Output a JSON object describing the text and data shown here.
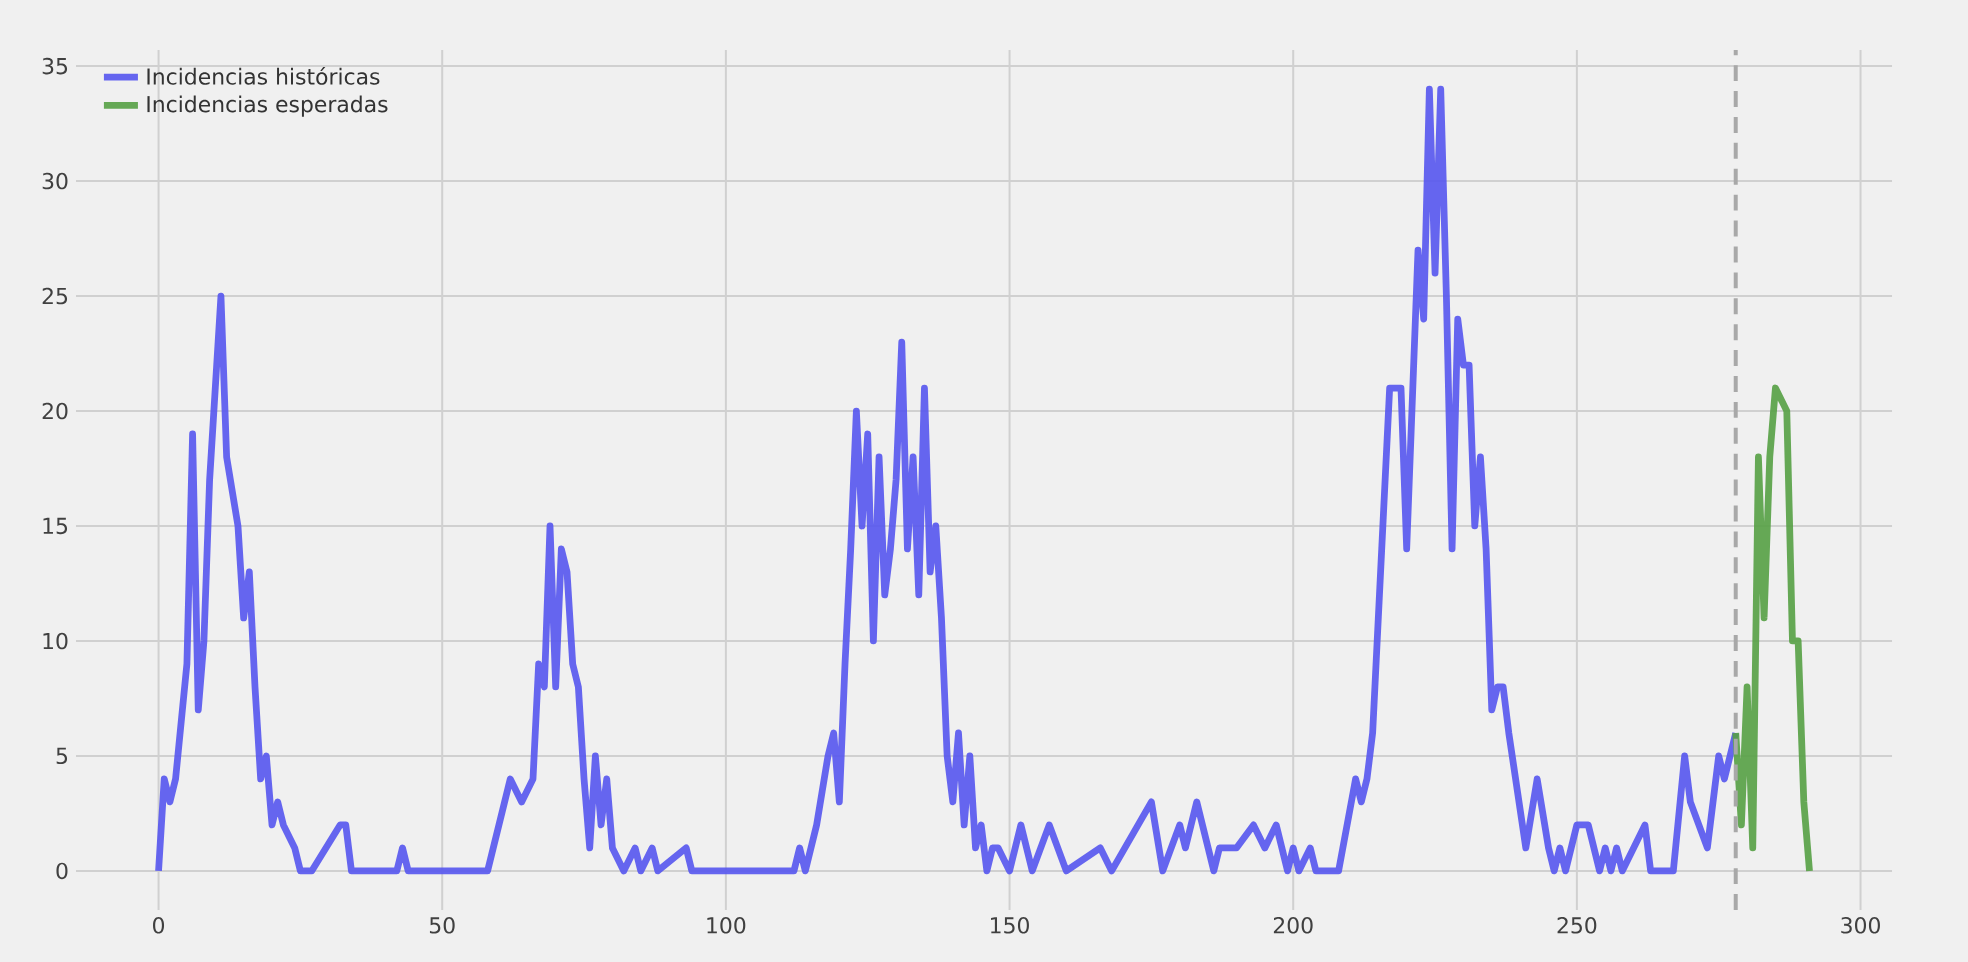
{
  "chart_data": {
    "type": "line",
    "series": [
      {
        "name": "Incidencias históricas",
        "color": "#5555ee",
        "x": [
          0,
          1,
          2,
          3,
          5,
          6,
          7,
          8,
          9,
          11,
          12,
          14,
          15,
          16,
          17,
          18,
          19,
          20,
          21,
          22,
          24,
          25,
          27,
          32,
          33,
          34,
          42,
          43,
          44,
          58,
          59,
          61,
          62,
          64,
          66,
          67,
          68,
          69,
          70,
          71,
          72,
          73,
          74,
          75,
          76,
          77,
          78,
          79,
          80,
          82,
          84,
          85,
          87,
          88,
          93,
          94,
          112,
          113,
          114,
          116,
          118,
          119,
          120,
          121,
          122,
          123,
          124,
          125,
          126,
          127,
          128,
          129,
          130,
          131,
          132,
          133,
          134,
          135,
          136,
          137,
          138,
          139,
          140,
          141,
          142,
          143,
          144,
          145,
          146,
          147,
          148,
          150,
          152,
          154,
          157,
          160,
          166,
          168,
          175,
          177,
          180,
          181,
          183,
          185,
          186,
          187,
          190,
          193,
          195,
          197,
          199,
          200,
          201,
          203,
          204,
          208,
          211,
          212,
          213,
          214,
          217,
          219,
          220,
          222,
          223,
          224,
          225,
          226,
          227,
          228,
          229,
          230,
          231,
          232,
          233,
          234,
          235,
          236,
          237,
          238,
          241,
          243,
          245,
          246,
          247,
          248,
          250,
          252,
          254,
          255,
          256,
          257,
          258,
          262,
          263,
          267,
          269,
          270,
          273,
          275,
          276,
          278
        ],
        "values": [
          0,
          4,
          3,
          4,
          9,
          19,
          7,
          10,
          17,
          25,
          18,
          15,
          11,
          13,
          8,
          4,
          5,
          2,
          3,
          2,
          1,
          0,
          0,
          2,
          2,
          0,
          0,
          1,
          0,
          0,
          1,
          3,
          4,
          3,
          4,
          9,
          8,
          15,
          8,
          14,
          13,
          9,
          8,
          4,
          1,
          5,
          2,
          4,
          1,
          0,
          1,
          0,
          1,
          0,
          1,
          0,
          0,
          1,
          0,
          2,
          5,
          6,
          3,
          9,
          14,
          20,
          15,
          19,
          10,
          18,
          12,
          14,
          17,
          23,
          14,
          18,
          12,
          21,
          13,
          15,
          11,
          5,
          3,
          6,
          2,
          5,
          1,
          2,
          0,
          1,
          1,
          0,
          2,
          0,
          2,
          0,
          1,
          0,
          3,
          0,
          2,
          1,
          3,
          1,
          0,
          1,
          1,
          2,
          1,
          2,
          0,
          1,
          0,
          1,
          0,
          0,
          4,
          3,
          4,
          6,
          21,
          21,
          14,
          27,
          24,
          34,
          26,
          34,
          25,
          14,
          24,
          22,
          22,
          15,
          18,
          14,
          7,
          8,
          8,
          6,
          1,
          4,
          1,
          0,
          1,
          0,
          2,
          2,
          0,
          1,
          0,
          1,
          0,
          2,
          0,
          0,
          5,
          3,
          1,
          5,
          4,
          6
        ]
      },
      {
        "name": "Incidencias esperadas",
        "color": "#55a044",
        "x": [
          278,
          279,
          280,
          281,
          282,
          283,
          284,
          285,
          287,
          288,
          289,
          290,
          291
        ],
        "values": [
          6,
          2,
          8,
          1,
          18,
          11,
          18,
          21,
          20,
          10,
          10,
          3,
          0
        ]
      }
    ],
    "xlim": [
      -14.55,
      305.55
    ],
    "ylim": [
      -1.7,
      35.7
    ],
    "xticks": [
      0,
      50,
      100,
      150,
      200,
      250,
      300
    ],
    "yticks": [
      0,
      5,
      10,
      15,
      20,
      25,
      30,
      35
    ],
    "grid": true,
    "legend": "top left",
    "line_style": "solid",
    "ref_lines": [
      {
        "axis": "x",
        "value": 278,
        "color": "#a8a8a8",
        "line_style": "dashed"
      }
    ]
  }
}
